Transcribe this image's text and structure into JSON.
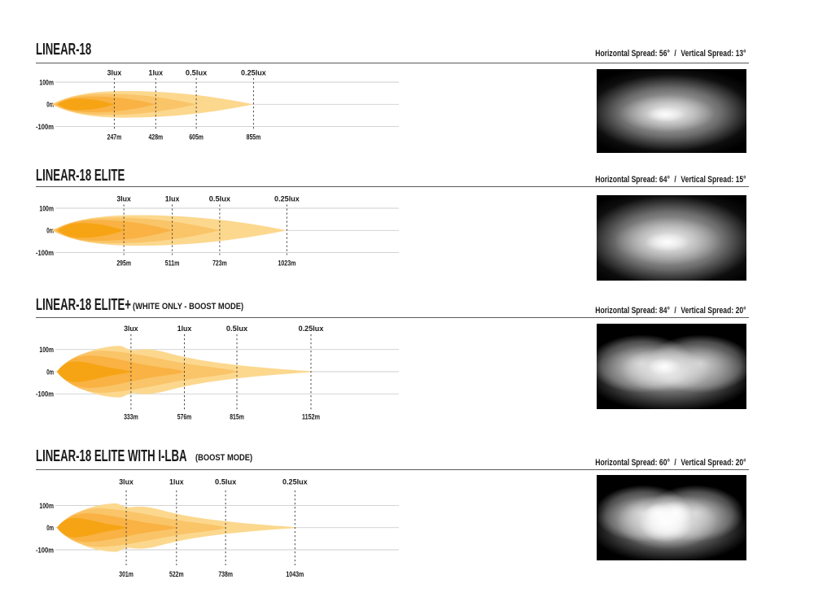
{
  "palette": {
    "text": "#1A1A1A",
    "grid_line": "#CDCDCD",
    "dash_line": "#4A4A4A",
    "rule_line": "#5A5A5A",
    "photo_background": "#000000",
    "beam_colors_3lux_to_025lux": [
      "#F6A414",
      "#F9B243",
      "#FAC468",
      "#FCD88E"
    ]
  },
  "chart_data": [
    {
      "type": "area",
      "title": "LINEAR-18",
      "subtitle": "",
      "spread": {
        "h_label": "Horizontal Spread:",
        "h_value": "56°",
        "sep": "/",
        "v_label": "Vertical Spread:",
        "v_value": "13°"
      },
      "lux_labels": [
        "3lux",
        "1lux",
        "0.5lux",
        "0.25lux"
      ],
      "distances_m": [
        247,
        428,
        605,
        855
      ],
      "distance_labels": [
        "247m",
        "428m",
        "605m",
        "855m"
      ],
      "y_tick_labels": [
        "100m",
        "0m",
        "-100m"
      ],
      "y_ticks_m": [
        100,
        0,
        -100
      ],
      "x_axis_max_m": 1490,
      "beam_shape": "lens",
      "beam_halfheights_m": [
        26,
        36,
        48,
        60
      ],
      "photo": "single elongated horizontal hotspot"
    },
    {
      "type": "area",
      "title": "LINEAR-18 ELITE",
      "subtitle": "",
      "spread": {
        "h_label": "Horizontal Spread:",
        "h_value": "64°",
        "sep": "/",
        "v_label": "Vertical Spread:",
        "v_value": "15°"
      },
      "lux_labels": [
        "3lux",
        "1lux",
        "0.5lux",
        "0.25lux"
      ],
      "distances_m": [
        295,
        511,
        723,
        1023
      ],
      "distance_labels": [
        "295m",
        "511m",
        "723m",
        "1023m"
      ],
      "y_tick_labels": [
        "100m",
        "0m",
        "-100m"
      ],
      "y_ticks_m": [
        100,
        0,
        -100
      ],
      "x_axis_max_m": 1523,
      "beam_shape": "lens",
      "beam_halfheights_m": [
        33,
        47,
        58,
        69
      ],
      "photo": "wide elongated horizontal hotspot"
    },
    {
      "type": "area",
      "title": "LINEAR-18 ELITE+",
      "subtitle": "(WHITE ONLY - BOOST MODE)",
      "spread": {
        "h_label": "Horizontal Spread:",
        "h_value": "84°",
        "sep": "/",
        "v_label": "Vertical Spread:",
        "v_value": "20°"
      },
      "lux_labels": [
        "3lux",
        "1lux",
        "0.5lux",
        "0.25lux"
      ],
      "distances_m": [
        333,
        576,
        815,
        1152
      ],
      "distance_labels": [
        "333m",
        "576m",
        "815m",
        "1152m"
      ],
      "y_tick_labels": [
        "100m",
        "0m",
        "-100m"
      ],
      "y_ticks_m": [
        100,
        0,
        -100
      ],
      "x_axis_max_m": 1552,
      "beam_shape": "spike",
      "beam_halfheights_m": [
        47,
        73,
        95,
        116
      ],
      "photo": "twin-lobed wide hotspot"
    },
    {
      "type": "area",
      "title": "LINEAR-18 ELITE WITH I-LBA",
      "subtitle": "(BOOST MODE)",
      "spread": {
        "h_label": "Horizontal Spread:",
        "h_value": "60°",
        "sep": "/",
        "v_label": "Vertical Spread:",
        "v_value": "20°"
      },
      "lux_labels": [
        "3lux",
        "1lux",
        "0.5lux",
        "0.25lux"
      ],
      "distances_m": [
        301,
        522,
        738,
        1043
      ],
      "distance_labels": [
        "301m",
        "522m",
        "738m",
        "1043m"
      ],
      "y_tick_labels": [
        "100m",
        "0m",
        "-100m"
      ],
      "y_ticks_m": [
        100,
        0,
        -100
      ],
      "x_axis_max_m": 1500,
      "beam_shape": "spike",
      "beam_halfheights_m": [
        44,
        65,
        87,
        109
      ],
      "photo": "twin-lobed bright center hotspot"
    }
  ]
}
